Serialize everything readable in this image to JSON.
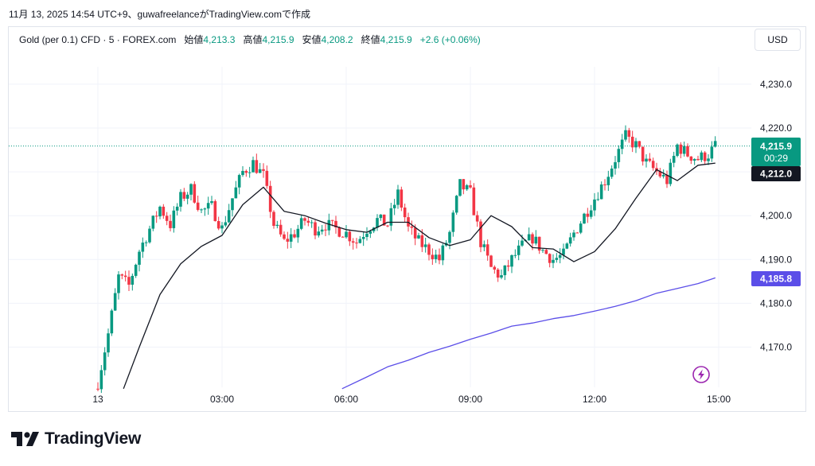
{
  "caption": "11月 13, 2025 14:54 UTC+9、guwafreelanceがTradingView.comで作成",
  "legend": {
    "symbol": "Gold (per 0.1) CFD · 5 · FOREX.com",
    "open_label": "始値",
    "open": "4,213.3",
    "high_label": "高値",
    "high": "4,215.9",
    "low_label": "安値",
    "low": "4,208.2",
    "close_label": "終値",
    "close": "4,215.9",
    "change": "+2.6 (+0.06%)"
  },
  "currency_button": "USD",
  "price_badges": {
    "last_price": "4,215.9",
    "countdown": "00:29",
    "ma_short": "4,212.0",
    "ma_long": "4,185.8"
  },
  "colors": {
    "up": "#089981",
    "down": "#f23645",
    "ma_short": "#131722",
    "ma_long": "#5b4ee8",
    "grid": "#f0f3fa",
    "axis_text": "#131722",
    "lightning": "#9c27b0"
  },
  "icons": [
    "lightning-icon",
    "tradingview-logo-icon"
  ],
  "footer": {
    "brand": "TradingView"
  },
  "chart_data": {
    "type": "candlestick",
    "interval_minutes": 5,
    "y_ticks": [
      "4,230.0",
      "4,220.0",
      "4,210.0",
      "4,200.0",
      "4,190.0",
      "4,180.0",
      "4,170.0"
    ],
    "y_tick_values": [
      4230,
      4220,
      4210,
      4200,
      4190,
      4180,
      4170
    ],
    "ylim": [
      4160.5,
      4232.5
    ],
    "x_ticks": [
      "13",
      "03:00",
      "06:00",
      "09:00",
      "12:00",
      "15:00"
    ],
    "x_tick_hours": [
      0,
      3,
      6,
      9,
      12,
      15
    ],
    "xlim_hours": [
      0,
      15.6
    ],
    "grid": true,
    "last_price_line": 4215.9,
    "anchors_hours": [
      0,
      0.25,
      0.5,
      0.75,
      1,
      1.25,
      1.5,
      1.75,
      2,
      2.25,
      2.5,
      2.75,
      3,
      3.25,
      3.5,
      3.75,
      4,
      4.25,
      4.5,
      4.75,
      5,
      5.25,
      5.5,
      5.75,
      6,
      6.25,
      6.5,
      6.75,
      7,
      7.25,
      7.5,
      7.75,
      8,
      8.25,
      8.5,
      8.75,
      9,
      9.25,
      9.5,
      9.75,
      10,
      10.25,
      10.5,
      10.75,
      11,
      11.25,
      11.5,
      11.75,
      12,
      12.25,
      12.5,
      12.75,
      13,
      13.25,
      13.5,
      13.75,
      14,
      14.25,
      14.5,
      14.75,
      14.92
    ],
    "anchors_close": [
      4162,
      4173,
      4186,
      4184,
      4192,
      4197,
      4202,
      4198,
      4204,
      4206,
      4201,
      4202,
      4197,
      4204,
      4210,
      4212,
      4209,
      4198,
      4194,
      4196,
      4199,
      4197,
      4198,
      4197,
      4196,
      4194,
      4197,
      4199,
      4198,
      4205,
      4197,
      4194,
      4192,
      4190,
      4196,
      4207,
      4205,
      4194,
      4188,
      4186,
      4190,
      4193,
      4195,
      4192,
      4190,
      4191,
      4196,
      4200,
      4204,
      4208,
      4213,
      4218,
      4216,
      4212,
      4210,
      4208,
      4216,
      4214,
      4213,
      4214,
      4215.9
    ],
    "ma_short": {
      "period": 20,
      "x_hours": [
        0.62,
        1.0,
        1.5,
        2.0,
        2.5,
        3.0,
        3.5,
        4.0,
        4.5,
        5.0,
        5.5,
        6.0,
        6.5,
        7.0,
        7.5,
        8.0,
        8.5,
        9.0,
        9.5,
        10.0,
        10.5,
        11.0,
        11.5,
        12.0,
        12.5,
        13.0,
        13.5,
        14.0,
        14.5,
        14.92
      ],
      "values": [
        4160.5,
        4170,
        4182,
        4189,
        4193,
        4195.5,
        4202.5,
        4206.5,
        4201,
        4200,
        4198.3,
        4196.8,
        4196.2,
        4198.5,
        4198.5,
        4195,
        4193.2,
        4194.5,
        4200,
        4197.5,
        4192.7,
        4192.4,
        4189.5,
        4191.8,
        4197,
        4204,
        4210.5,
        4208,
        4211.5,
        4212.0
      ]
    },
    "ma_long": {
      "period": 200,
      "x_hours": [
        5.9,
        6.5,
        7.0,
        7.5,
        8.0,
        8.5,
        9.0,
        9.5,
        10.0,
        10.5,
        11.0,
        11.5,
        12.0,
        12.5,
        13.0,
        13.5,
        14.0,
        14.5,
        14.92
      ],
      "values": [
        4160.5,
        4163.2,
        4165.5,
        4167,
        4168.8,
        4170.2,
        4171.8,
        4173.2,
        4174.8,
        4175.5,
        4176.5,
        4177.2,
        4178.2,
        4179.3,
        4180.6,
        4182.3,
        4183.4,
        4184.5,
        4185.8
      ]
    }
  }
}
